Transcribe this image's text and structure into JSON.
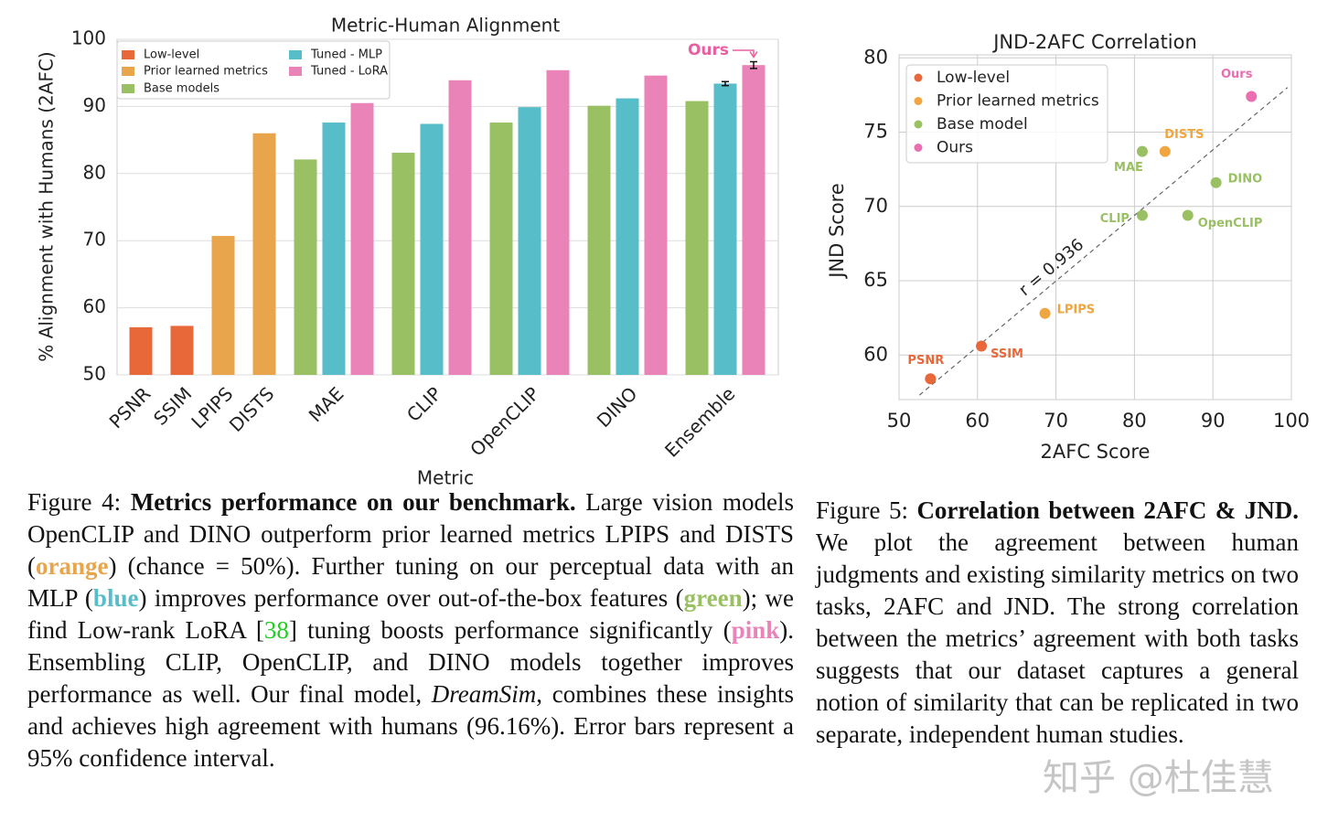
{
  "chart_data": [
    {
      "type": "bar",
      "title": "Metric-Human Alignment",
      "xlabel": "Metric",
      "ylabel": "% Alignment with Humans (2AFC)",
      "categories": [
        "PSNR",
        "SSIM",
        "LPIPS",
        "DISTS",
        "MAE",
        "CLIP",
        "OpenCLIP",
        "DINO",
        "Ensemble"
      ],
      "series": [
        {
          "name": "Low-level",
          "color": "#e8683a",
          "values": [
            57.1,
            57.3,
            null,
            null,
            null,
            null,
            null,
            null,
            null
          ]
        },
        {
          "name": "Prior learned metrics",
          "color": "#e8a54c",
          "values": [
            null,
            null,
            70.7,
            86.0,
            null,
            null,
            null,
            null,
            null
          ]
        },
        {
          "name": "Base models",
          "color": "#9ac064",
          "values": [
            null,
            null,
            null,
            null,
            82.1,
            83.1,
            87.6,
            90.1,
            90.8
          ]
        },
        {
          "name": "Tuned - MLP",
          "color": "#57bdc8",
          "values": [
            null,
            null,
            null,
            null,
            87.6,
            87.4,
            89.9,
            91.2,
            93.4
          ],
          "errors": [
            null,
            null,
            null,
            null,
            null,
            null,
            null,
            null,
            0.3
          ]
        },
        {
          "name": "Tuned - LoRA",
          "color": "#ea84b8",
          "values": [
            null,
            null,
            null,
            null,
            90.5,
            93.9,
            95.4,
            94.6,
            96.16
          ],
          "errors": [
            null,
            null,
            null,
            null,
            null,
            null,
            null,
            null,
            0.5
          ]
        }
      ],
      "ylim": [
        50,
        100
      ],
      "yticks": [
        50,
        60,
        70,
        80,
        90,
        100
      ],
      "grid": true,
      "legend": "upper left",
      "annotation": {
        "text": "Ours",
        "color": "#e8609f"
      }
    },
    {
      "type": "scatter",
      "title": "JND-2AFC Correlation",
      "xlabel": "2AFC Score",
      "ylabel": "JND Score",
      "series": [
        {
          "name": "Low-level",
          "color": "#e8683a",
          "labels": [
            "PSNR",
            "SSIM"
          ],
          "x": [
            54.0,
            60.5
          ],
          "y": [
            58.4,
            60.6
          ]
        },
        {
          "name": "Prior learned metrics",
          "color": "#f0a640",
          "labels": [
            "LPIPS",
            "DISTS"
          ],
          "x": [
            68.6,
            83.9
          ],
          "y": [
            62.8,
            73.7
          ]
        },
        {
          "name": "Base model",
          "color": "#9ac064",
          "labels": [
            "MAE",
            "CLIP",
            "OpenCLIP",
            "DINO"
          ],
          "x": [
            81.0,
            81.0,
            86.8,
            90.4
          ],
          "y": [
            73.7,
            69.4,
            69.4,
            71.6
          ]
        },
        {
          "name": "Ours",
          "color": "#ea6fb0",
          "labels": [
            "Ours"
          ],
          "x": [
            94.9
          ],
          "y": [
            77.4
          ]
        }
      ],
      "trendline": {
        "x": [
          52.6,
          99.5
        ],
        "y": [
          57.3,
          78.0
        ]
      },
      "annotation": "r = 0.936",
      "xlim": [
        50,
        100
      ],
      "xticks": [
        50,
        60,
        70,
        80,
        90,
        100
      ],
      "ylim": [
        57,
        80.2
      ],
      "yticks": [
        60,
        65,
        70,
        75,
        80
      ],
      "grid": true,
      "legend": "upper left"
    }
  ],
  "captions": [
    {
      "runs": [
        {
          "text": "Figure 4: "
        },
        {
          "text": "Metrics performance on our benchmark.",
          "bold": true
        },
        {
          "text": " Large vision models OpenCLIP and DINO outperform prior learned metrics LPIPS and DISTS ("
        },
        {
          "text": "orange",
          "bold": true,
          "color": "#e8a54c"
        },
        {
          "text": ") (chance = 50%). Further tuning on our perceptual data with an MLP ("
        },
        {
          "text": "blue",
          "bold": true,
          "color": "#57bdc8"
        },
        {
          "text": ") improves performance over out-of-the-box features ("
        },
        {
          "text": "green",
          "bold": true,
          "color": "#9ac064"
        },
        {
          "text": "); we find Low-rank LoRA ["
        },
        {
          "text": "38",
          "color": "#22cc22"
        },
        {
          "text": "] tuning boosts performance significantly ("
        },
        {
          "text": "pink",
          "bold": true,
          "color": "#ea84b8"
        },
        {
          "text": "). Ensembling CLIP, OpenCLIP, and DINO models together improves performance as well. Our final model, "
        },
        {
          "text": "DreamSim",
          "italic": true
        },
        {
          "text": ", combines these insights and achieves high agreement with humans (96.16%). Error bars represent a 95% confidence interval."
        }
      ]
    },
    {
      "runs": [
        {
          "text": "Figure 5: "
        },
        {
          "text": "Correlation between 2AFC & JND.",
          "bold": true
        },
        {
          "text": " We plot the agreement between human judgments and existing similarity metrics on two tasks, 2AFC and JND. The strong correlation between the metrics’ agreement with both tasks suggests that our dataset captures a general notion of similarity that can be replicated in two separate, independent human studies."
        }
      ]
    }
  ],
  "watermark": "知乎 @杜佳慧"
}
